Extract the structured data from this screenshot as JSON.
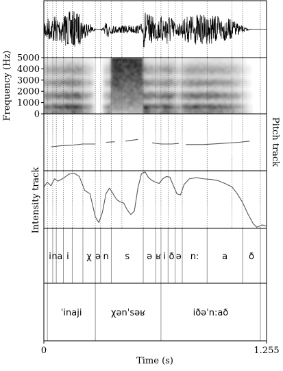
{
  "chart_data": {
    "type": "line",
    "title": "",
    "xlabel": "Time (s)",
    "xlim": [
      0,
      1.255
    ],
    "x_tick_labels": [
      "0",
      "1.255"
    ],
    "panels": {
      "waveform": {
        "label": ""
      },
      "spectrogram": {
        "ylabel": "Frequency (Hz)",
        "ylim": [
          0,
          5000
        ],
        "y_tick_labels": [
          "0",
          "1000",
          "2000",
          "3000",
          "4000",
          "5000"
        ]
      },
      "pitch": {
        "label": "Pitch track"
      },
      "intensity": {
        "label": "Intensity track"
      }
    },
    "boundaries": [
      0.02,
      0.05,
      0.07,
      0.11,
      0.16,
      0.22,
      0.29,
      0.32,
      0.38,
      0.44,
      0.56,
      0.63,
      0.66,
      0.7,
      0.74,
      0.78,
      0.92,
      1.06,
      1.12,
      1.22
    ],
    "segments": [
      {
        "label": "i",
        "start": 0.02,
        "end": 0.05
      },
      {
        "label": "n",
        "start": 0.05,
        "end": 0.07
      },
      {
        "label": "a",
        "start": 0.07,
        "end": 0.11
      },
      {
        "label": "i",
        "start": 0.11,
        "end": 0.16
      },
      {
        "label": "χ",
        "start": 0.22,
        "end": 0.29
      },
      {
        "label": "ə",
        "start": 0.29,
        "end": 0.32
      },
      {
        "label": "n",
        "start": 0.32,
        "end": 0.38
      },
      {
        "label": "s",
        "start": 0.38,
        "end": 0.56
      },
      {
        "label": "ə",
        "start": 0.56,
        "end": 0.63
      },
      {
        "label": "ʁ",
        "start": 0.63,
        "end": 0.66
      },
      {
        "label": "i",
        "start": 0.66,
        "end": 0.7
      },
      {
        "label": "ð",
        "start": 0.7,
        "end": 0.74
      },
      {
        "label": "ə",
        "start": 0.74,
        "end": 0.78
      },
      {
        "label": "n:",
        "start": 0.78,
        "end": 0.92
      },
      {
        "label": "a",
        "start": 0.92,
        "end": 1.12
      },
      {
        "label": "ð",
        "start": 1.12,
        "end": 1.22
      }
    ],
    "words": [
      {
        "label": "ˈinaji",
        "start": 0.02,
        "end": 0.29
      },
      {
        "label": "χənˈsəʁ",
        "start": 0.29,
        "end": 0.66
      },
      {
        "label": "iðəˈn:að",
        "start": 0.66,
        "end": 1.22
      }
    ],
    "pitch_series": [
      {
        "values": [
          [
            0.04,
            0.42
          ],
          [
            0.1,
            0.44
          ],
          [
            0.16,
            0.45
          ],
          [
            0.22,
            0.47
          ],
          [
            0.29,
            0.47
          ]
        ]
      },
      {
        "values": [
          [
            0.35,
            0.5
          ],
          [
            0.4,
            0.51
          ]
        ]
      },
      {
        "values": [
          [
            0.46,
            0.52
          ],
          [
            0.53,
            0.55
          ]
        ]
      },
      {
        "values": [
          [
            0.61,
            0.49
          ],
          [
            0.66,
            0.47
          ],
          [
            0.72,
            0.47
          ],
          [
            0.76,
            0.48
          ]
        ]
      },
      {
        "values": [
          [
            0.8,
            0.46
          ],
          [
            0.9,
            0.46
          ],
          [
            1.0,
            0.48
          ],
          [
            1.1,
            0.5
          ],
          [
            1.16,
            0.52
          ]
        ]
      }
    ],
    "intensity_values": [
      [
        0.0,
        0.72
      ],
      [
        0.02,
        0.8
      ],
      [
        0.04,
        0.74
      ],
      [
        0.06,
        0.86
      ],
      [
        0.08,
        0.82
      ],
      [
        0.11,
        0.87
      ],
      [
        0.14,
        0.94
      ],
      [
        0.17,
        0.96
      ],
      [
        0.2,
        0.9
      ],
      [
        0.23,
        0.66
      ],
      [
        0.26,
        0.6
      ],
      [
        0.29,
        0.2
      ],
      [
        0.31,
        0.1
      ],
      [
        0.33,
        0.28
      ],
      [
        0.35,
        0.6
      ],
      [
        0.37,
        0.7
      ],
      [
        0.39,
        0.6
      ],
      [
        0.41,
        0.5
      ],
      [
        0.43,
        0.46
      ],
      [
        0.45,
        0.44
      ],
      [
        0.47,
        0.32
      ],
      [
        0.49,
        0.24
      ],
      [
        0.51,
        0.3
      ],
      [
        0.53,
        0.7
      ],
      [
        0.55,
        0.95
      ],
      [
        0.57,
        0.98
      ],
      [
        0.59,
        0.88
      ],
      [
        0.61,
        0.83
      ],
      [
        0.63,
        0.8
      ],
      [
        0.65,
        0.78
      ],
      [
        0.67,
        0.86
      ],
      [
        0.69,
        0.9
      ],
      [
        0.71,
        0.89
      ],
      [
        0.73,
        0.74
      ],
      [
        0.75,
        0.6
      ],
      [
        0.77,
        0.58
      ],
      [
        0.79,
        0.76
      ],
      [
        0.82,
        0.86
      ],
      [
        0.86,
        0.88
      ],
      [
        0.9,
        0.86
      ],
      [
        0.94,
        0.85
      ],
      [
        0.98,
        0.83
      ],
      [
        1.02,
        0.78
      ],
      [
        1.06,
        0.72
      ],
      [
        1.09,
        0.6
      ],
      [
        1.12,
        0.45
      ],
      [
        1.15,
        0.25
      ],
      [
        1.18,
        0.08
      ],
      [
        1.2,
        0.02
      ],
      [
        1.23,
        0.06
      ],
      [
        1.255,
        0.04
      ]
    ]
  }
}
